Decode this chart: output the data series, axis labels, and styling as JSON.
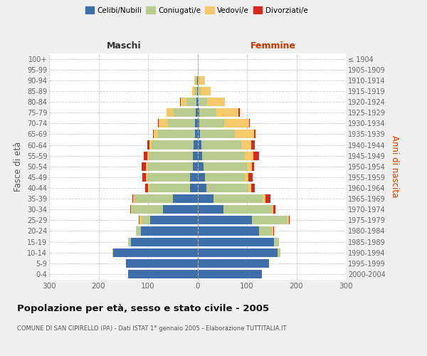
{
  "age_groups": [
    "0-4",
    "5-9",
    "10-14",
    "15-19",
    "20-24",
    "25-29",
    "30-34",
    "35-39",
    "40-44",
    "45-49",
    "50-54",
    "55-59",
    "60-64",
    "65-69",
    "70-74",
    "75-79",
    "80-84",
    "85-89",
    "90-94",
    "95-99",
    "100+"
  ],
  "birth_years": [
    "2000-2004",
    "1995-1999",
    "1990-1994",
    "1985-1989",
    "1980-1984",
    "1975-1979",
    "1970-1974",
    "1965-1969",
    "1960-1964",
    "1955-1959",
    "1950-1954",
    "1945-1949",
    "1940-1944",
    "1935-1939",
    "1930-1934",
    "1925-1929",
    "1920-1924",
    "1915-1919",
    "1910-1914",
    "1905-1909",
    "≤ 1904"
  ],
  "maschi": {
    "celibi": [
      140,
      145,
      170,
      135,
      115,
      95,
      70,
      50,
      15,
      15,
      10,
      10,
      8,
      5,
      5,
      3,
      2,
      1,
      1,
      0,
      0
    ],
    "coniugati": [
      0,
      0,
      2,
      5,
      8,
      18,
      62,
      78,
      82,
      85,
      90,
      88,
      85,
      75,
      55,
      45,
      20,
      5,
      3,
      0,
      0
    ],
    "vedovi": [
      0,
      0,
      0,
      0,
      2,
      4,
      2,
      2,
      3,
      4,
      5,
      4,
      4,
      8,
      18,
      15,
      12,
      5,
      2,
      0,
      0
    ],
    "divorziati": [
      0,
      0,
      0,
      0,
      0,
      2,
      2,
      2,
      6,
      8,
      8,
      7,
      5,
      2,
      2,
      0,
      1,
      0,
      0,
      0,
      0
    ]
  },
  "femmine": {
    "nubili": [
      130,
      145,
      162,
      155,
      125,
      110,
      52,
      32,
      18,
      15,
      12,
      10,
      8,
      5,
      4,
      3,
      2,
      1,
      1,
      0,
      0
    ],
    "coniugate": [
      0,
      0,
      5,
      10,
      25,
      70,
      98,
      100,
      85,
      80,
      88,
      85,
      80,
      70,
      50,
      35,
      18,
      5,
      2,
      0,
      0
    ],
    "vedove": [
      0,
      0,
      0,
      0,
      3,
      5,
      3,
      5,
      5,
      8,
      10,
      18,
      20,
      40,
      50,
      45,
      35,
      20,
      12,
      1,
      0
    ],
    "divorziate": [
      0,
      0,
      0,
      0,
      2,
      2,
      5,
      10,
      8,
      8,
      5,
      12,
      8,
      2,
      2,
      2,
      0,
      1,
      0,
      0,
      0
    ]
  },
  "colors": {
    "celibi": "#3d6faa",
    "coniugati": "#b8cc90",
    "vedovi": "#f5c96a",
    "divorziati": "#d42b1e"
  },
  "xlim": 300,
  "title": "Popolazione per età, sesso e stato civile - 2005",
  "subtitle": "COMUNE DI SAN CIPIRELLO (PA) - Dati ISTAT 1° gennaio 2005 - Elaborazione TUTTITALIA.IT",
  "ylabel_left": "Fasce di età",
  "ylabel_right": "Anni di nascita",
  "xlabel_maschi": "Maschi",
  "xlabel_femmine": "Femmine",
  "bg_color": "#f0f0f0",
  "plot_bg": "#ffffff",
  "grid_color": "#cccccc"
}
